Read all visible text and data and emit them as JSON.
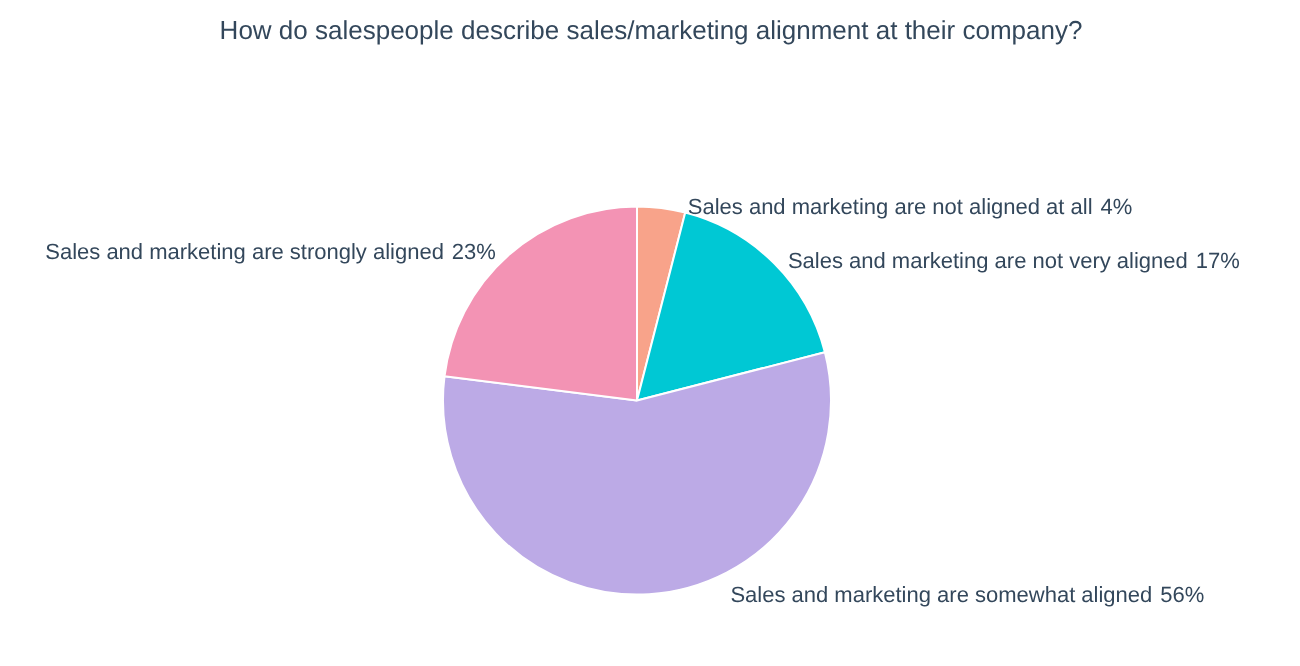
{
  "chart_data": {
    "type": "pie",
    "title": "How do salespeople describe sales/marketing alignment at their company?",
    "categories": [
      "Sales and marketing are not aligned at all",
      "Sales and marketing are not very aligned",
      "Sales and marketing are somewhat aligned",
      "Sales and marketing are strongly aligned"
    ],
    "values": [
      4,
      17,
      56,
      23
    ],
    "colors": [
      "#f8a38a",
      "#00c8d4",
      "#bcaae6",
      "#f393b4"
    ],
    "value_labels": [
      "4%",
      "17%",
      "56%",
      "23%"
    ]
  }
}
